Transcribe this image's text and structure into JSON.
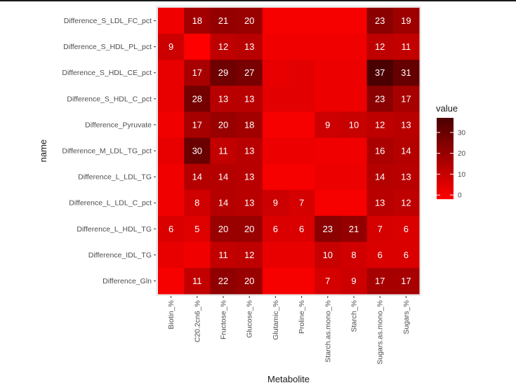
{
  "chart_data": {
    "type": "heatmap",
    "xlabel": "Metabolite",
    "ylabel": "name",
    "x_categories": [
      "Biotin_%",
      "C20.2cn6_%",
      "Fructose_%",
      "Glucose_%",
      "Glutamic_%",
      "Proline_%",
      "Starch.as.mono_%",
      "Starch_%",
      "Sugars.as.mono_%",
      "Sugars_%"
    ],
    "y_categories": [
      "Difference_S_LDL_FC_pct",
      "Difference_S_HDL_PL_pct",
      "Difference_S_HDL_CE_pct",
      "Difference_S_HDL_C_pct",
      "Difference_Pyruvate",
      "Difference_M_LDL_TG_pct",
      "Difference_L_LDL_TG",
      "Difference_L_LDL_C_pct",
      "Difference_L_HDL_TG",
      "Difference_IDL_TG",
      "Difference_Gln"
    ],
    "values": [
      [
        1,
        18,
        21,
        20,
        0,
        0,
        0,
        0,
        23,
        19
      ],
      [
        9,
        -2,
        12,
        13,
        1,
        1,
        1,
        1,
        12,
        11
      ],
      [
        3,
        17,
        29,
        27,
        3,
        4,
        2,
        2,
        37,
        31
      ],
      [
        3,
        28,
        13,
        13,
        4,
        4,
        2,
        2,
        23,
        17
      ],
      [
        1,
        17,
        20,
        18,
        0,
        0,
        9,
        10,
        12,
        13
      ],
      [
        3,
        30,
        11,
        13,
        2,
        2,
        1,
        1,
        16,
        14
      ],
      [
        1,
        14,
        14,
        13,
        0,
        0,
        2,
        2,
        14,
        13
      ],
      [
        1,
        8,
        14,
        13,
        9,
        7,
        0,
        0,
        13,
        12
      ],
      [
        6,
        5,
        20,
        20,
        6,
        6,
        23,
        21,
        7,
        6
      ],
      [
        3,
        1,
        11,
        12,
        3,
        3,
        10,
        8,
        6,
        6
      ],
      [
        0,
        11,
        22,
        20,
        0,
        0,
        7,
        9,
        17,
        17
      ]
    ],
    "labels": [
      [
        "",
        "18",
        "21",
        "20",
        "",
        "",
        "",
        "",
        "23",
        "19"
      ],
      [
        "9",
        "",
        "12",
        "13",
        "",
        "",
        "",
        "",
        "12",
        "11"
      ],
      [
        "",
        "17",
        "29",
        "27",
        "",
        "",
        "",
        "",
        "37",
        "31"
      ],
      [
        "",
        "28",
        "13",
        "13",
        "",
        "",
        "",
        "",
        "23",
        "17"
      ],
      [
        "",
        "17",
        "20",
        "18",
        "",
        "",
        "9",
        "10",
        "12",
        "13"
      ],
      [
        "",
        "30",
        "11",
        "13",
        "",
        "",
        "",
        "",
        "16",
        "14"
      ],
      [
        "",
        "14",
        "14",
        "13",
        "",
        "",
        "",
        "",
        "14",
        "13"
      ],
      [
        "",
        "8",
        "14",
        "13",
        "9",
        "7",
        "",
        "",
        "13",
        "12"
      ],
      [
        "6",
        "5",
        "20",
        "20",
        "6",
        "6",
        "23",
        "21",
        "7",
        "6"
      ],
      [
        "",
        "",
        "11",
        "12",
        "",
        "",
        "10",
        "8",
        "6",
        "6"
      ],
      [
        "",
        "11",
        "22",
        "20",
        "",
        "",
        "7",
        "9",
        "17",
        "17"
      ]
    ],
    "color_scale": {
      "low": "#ff0000",
      "high": "#4a0000",
      "domain": [
        -2,
        37
      ]
    },
    "legend": {
      "title": "value",
      "ticks": [
        0,
        10,
        20,
        30
      ],
      "placement": "right"
    },
    "panel_background": "#ebebeb",
    "grid": false
  }
}
